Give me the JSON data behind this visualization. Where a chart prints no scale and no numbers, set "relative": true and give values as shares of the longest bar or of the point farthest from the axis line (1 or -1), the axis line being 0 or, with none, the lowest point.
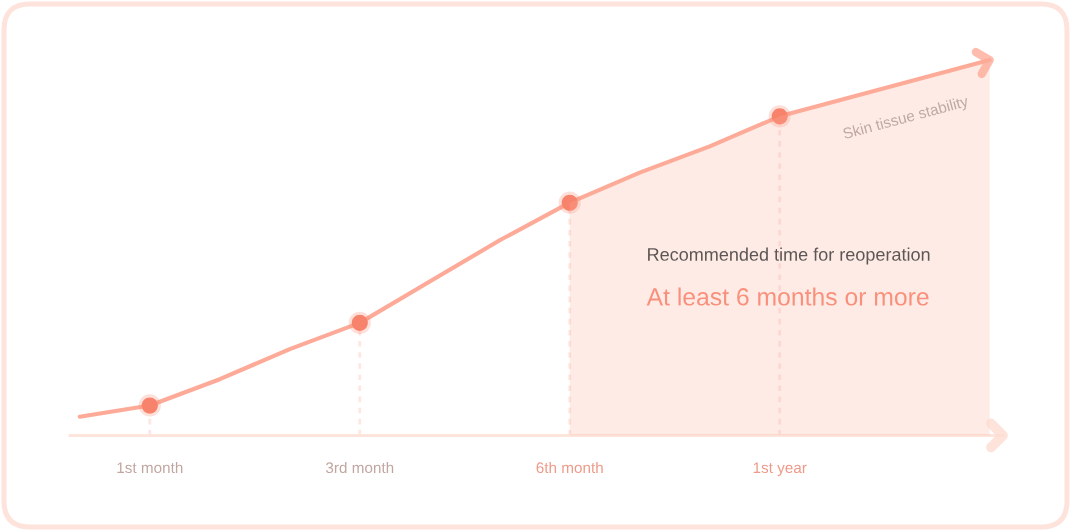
{
  "chart_data": {
    "type": "line",
    "relative": true,
    "categories": [
      null,
      "1st month",
      null,
      null,
      "3rd month",
      null,
      null,
      "6th month",
      null,
      null,
      "1st year",
      null,
      null,
      null
    ],
    "series": [
      {
        "type": "area",
        "color": "#feebe6",
        "values": [
          null,
          null,
          null,
          null,
          null,
          null,
          null,
          0.62,
          0.7,
          0.77,
          0.85,
          0.9,
          0.95,
          1
        ]
      },
      {
        "name": "Skin tissue stability",
        "color": "#fdab98",
        "values": [
          0.05,
          0.08,
          0.15,
          0.23,
          0.3,
          0.41,
          0.52,
          0.62,
          0.7,
          0.77,
          0.85,
          0.9,
          0.95,
          1
        ]
      },
      {
        "type": "lollipop",
        "color": "#f8836c",
        "marker": "circle",
        "line_style": "dashed",
        "values": [
          null,
          0.08,
          null,
          null,
          0.3,
          null,
          null,
          0.62,
          null,
          null,
          0.85,
          null,
          null,
          null
        ]
      }
    ],
    "annotations": [
      "Recommended time for reoperation",
      "At least 6 months or more"
    ]
  }
}
